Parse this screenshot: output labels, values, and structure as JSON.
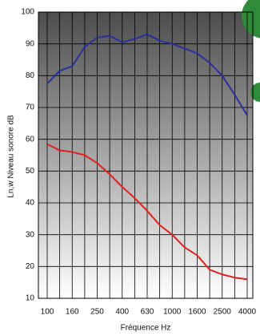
{
  "chart_data": {
    "type": "line",
    "xlabel": "Fréquence Hz",
    "ylabel": "Ln,w Niveau sonore dB",
    "categories": [
      "100",
      null,
      "160",
      null,
      "250",
      null,
      "400",
      null,
      "630",
      null,
      "1000",
      null,
      "1600",
      null,
      "2500",
      null,
      "4000"
    ],
    "series": [
      {
        "color": "#2b2f9a",
        "values": [
          77.5,
          81.5,
          83,
          89,
          92,
          92.5,
          90.5,
          91.5,
          93,
          91,
          90,
          88.5,
          87,
          84,
          80,
          74,
          67.5
        ]
      },
      {
        "color": "#e02020",
        "values": [
          58.5,
          56.5,
          56,
          55,
          52.5,
          49,
          45,
          41.5,
          37.5,
          33,
          30,
          26,
          23.5,
          19,
          17.5,
          16.5,
          16
        ]
      }
    ],
    "ylim": [
      10,
      100
    ],
    "yticks": [
      10,
      20,
      30,
      40,
      50,
      60,
      70,
      80,
      90,
      100
    ],
    "grid": true
  }
}
